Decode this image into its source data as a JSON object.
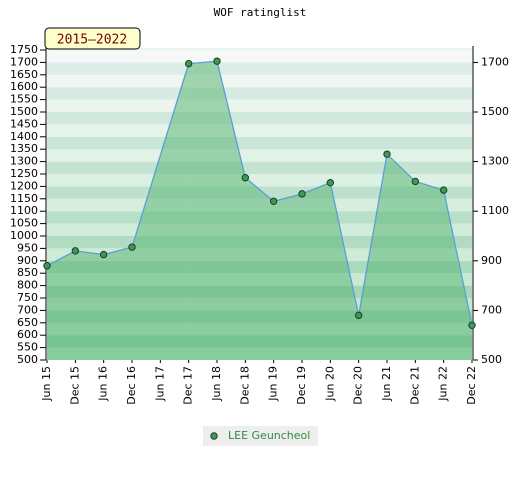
{
  "chart_data": {
    "type": "area",
    "title": "WOF ratinglist",
    "badge": "2015–2022",
    "categories": [
      "Jun 15",
      "Dec 15",
      "Jun 16",
      "Dec 16",
      "Jun 17",
      "Dec 17",
      "Jun 18",
      "Dec 18",
      "Jun 19",
      "Dec 19",
      "Jun 20",
      "Dec 20",
      "Jun 21",
      "Dec 21",
      "Jun 22",
      "Dec 22"
    ],
    "series": [
      {
        "name": "LEE Geuncheol",
        "color": "#5b9fd6",
        "values": [
          880,
          940,
          925,
          955,
          null,
          1695,
          1705,
          1235,
          1140,
          1170,
          1215,
          680,
          1330,
          1220,
          1185,
          640
        ]
      }
    ],
    "ylim": [
      500,
      1750
    ],
    "yticks": [
      500,
      550,
      600,
      650,
      700,
      750,
      800,
      850,
      900,
      950,
      1000,
      1050,
      1100,
      1150,
      1200,
      1250,
      1300,
      1350,
      1400,
      1450,
      1500,
      1550,
      1600,
      1650,
      1700,
      1750
    ],
    "y2lim": [
      500,
      1750
    ],
    "y2ticks": [
      500,
      700,
      900,
      1100,
      1300,
      1500,
      1700
    ],
    "legend": "bottom"
  }
}
